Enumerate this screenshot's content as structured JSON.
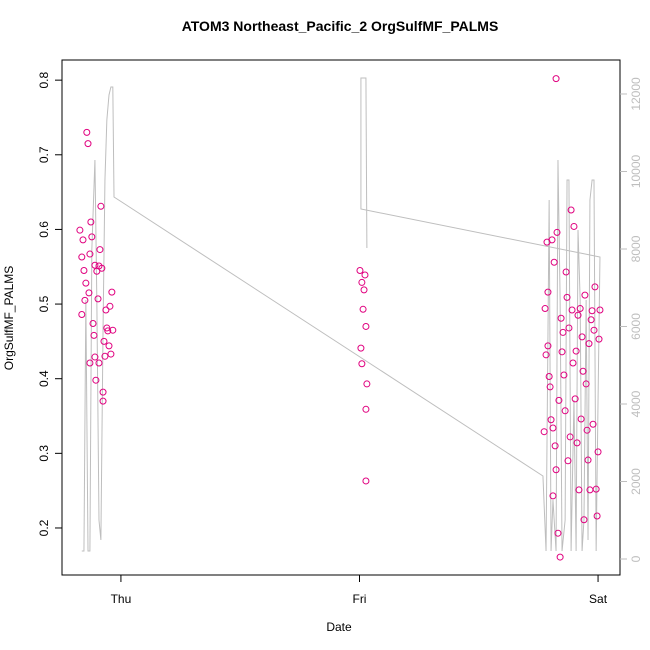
{
  "chart_data": {
    "type": "scatter",
    "title": "ATOM3 Northeast_Pacific_2 OrgSulfMF_PALMS",
    "xlabel": "Date",
    "ylabel": "OrgSulfMF_PALMS",
    "xlim": [
      0.753,
      3.092
    ],
    "ylim": [
      0.137,
      0.827
    ],
    "y2lim": [
      -413,
      12877
    ],
    "xticks": [
      {
        "value": 1,
        "label": "Thu"
      },
      {
        "value": 2,
        "label": "Fri"
      },
      {
        "value": 3,
        "label": "Sat"
      }
    ],
    "yticks": [
      0.2,
      0.3,
      0.4,
      0.5,
      0.6,
      0.7,
      0.8
    ],
    "y2ticks": [
      0,
      2000,
      4000,
      6000,
      8000,
      10000,
      12000
    ],
    "y2color": "#bebebe",
    "series": [
      {
        "type": "scatter",
        "color": "#e0007f",
        "x": [
          0.828,
          0.836,
          0.841,
          0.845,
          0.853,
          0.857,
          0.862,
          0.866,
          0.87,
          0.874,
          0.878,
          0.883,
          0.887,
          0.891,
          0.895,
          0.899,
          0.904,
          0.908,
          0.912,
          0.916,
          0.92,
          0.925,
          0.929,
          0.933,
          0.937,
          0.941,
          0.945,
          0.95,
          0.954,
          0.958,
          0.962,
          0.966,
          0.836,
          0.849,
          0.87,
          0.891,
          0.908,
          0.925,
          2.002,
          2.01,
          2.006,
          2.01,
          2.015,
          2.019,
          2.023,
          2.027,
          2.027,
          2.031,
          2.027,
          2.774,
          2.778,
          2.782,
          2.786,
          2.79,
          2.795,
          2.799,
          2.803,
          2.807,
          2.811,
          2.816,
          2.82,
          2.824,
          2.828,
          2.832,
          2.841,
          2.845,
          2.849,
          2.853,
          2.857,
          2.862,
          2.866,
          2.87,
          2.874,
          2.878,
          2.883,
          2.887,
          2.891,
          2.895,
          2.899,
          2.904,
          2.908,
          2.912,
          2.916,
          2.92,
          2.925,
          2.929,
          2.933,
          2.937,
          2.941,
          2.945,
          2.95,
          2.954,
          2.958,
          2.962,
          2.966,
          2.971,
          2.975,
          2.979,
          2.983,
          2.987,
          2.992,
          2.996,
          3.0,
          3.004,
          3.008,
          2.824,
          2.79,
          2.811,
          2.836
        ],
        "values": [
          0.599,
          0.563,
          0.586,
          0.545,
          0.528,
          0.73,
          0.715,
          0.515,
          0.567,
          0.61,
          0.59,
          0.474,
          0.458,
          0.429,
          0.398,
          0.544,
          0.507,
          0.551,
          0.573,
          0.631,
          0.548,
          0.382,
          0.45,
          0.43,
          0.492,
          0.468,
          0.464,
          0.444,
          0.497,
          0.433,
          0.516,
          0.465,
          0.486,
          0.505,
          0.421,
          0.552,
          0.421,
          0.37,
          0.545,
          0.529,
          0.441,
          0.42,
          0.493,
          0.519,
          0.539,
          0.47,
          0.359,
          0.393,
          0.263,
          0.329,
          0.494,
          0.432,
          0.583,
          0.444,
          0.403,
          0.389,
          0.345,
          0.586,
          0.243,
          0.556,
          0.31,
          0.278,
          0.596,
          0.193,
          0.161,
          0.481,
          0.436,
          0.462,
          0.405,
          0.357,
          0.543,
          0.509,
          0.29,
          0.468,
          0.322,
          0.626,
          0.492,
          0.421,
          0.604,
          0.373,
          0.437,
          0.314,
          0.485,
          0.251,
          0.494,
          0.346,
          0.456,
          0.41,
          0.211,
          0.512,
          0.393,
          0.331,
          0.291,
          0.447,
          0.251,
          0.479,
          0.491,
          0.339,
          0.465,
          0.523,
          0.252,
          0.216,
          0.302,
          0.453,
          0.492,
          0.802,
          0.516,
          0.334,
          0.371
        ]
      },
      {
        "type": "line",
        "axis": "y2",
        "color": "#bebebe",
        "x": [
          0.836,
          0.845,
          0.853,
          0.862,
          0.87,
          0.878,
          0.891,
          0.899,
          0.908,
          0.916,
          0.925,
          0.933,
          0.941,
          0.95,
          0.958,
          0.966,
          0.971,
          2.769,
          2.782,
          2.795,
          2.803,
          2.811,
          2.824,
          2.832,
          2.841,
          2.849,
          2.862,
          2.87,
          2.878,
          2.887,
          2.899,
          2.908,
          2.916,
          2.925,
          2.933,
          2.941,
          2.95,
          2.958,
          2.966,
          2.975,
          2.983,
          2.992,
          3.0,
          3.008,
          2.006,
          2.006,
          2.027,
          2.031
        ],
        "values": [
          206,
          206,
          6684,
          206,
          206,
          7974,
          10297,
          6684,
          1006,
          490,
          5910,
          9781,
          11329,
          11974,
          12181,
          12181,
          9342,
          2142,
          206,
          9265,
          206,
          1523,
          206,
          10297,
          6684,
          206,
          1006,
          9781,
          9781,
          206,
          4103,
          206,
          8490,
          6684,
          206,
          1006,
          6684,
          490,
          9265,
          9781,
          9781,
          206,
          4103,
          7794,
          9032,
          12413,
          12413,
          8026
        ]
      }
    ]
  }
}
